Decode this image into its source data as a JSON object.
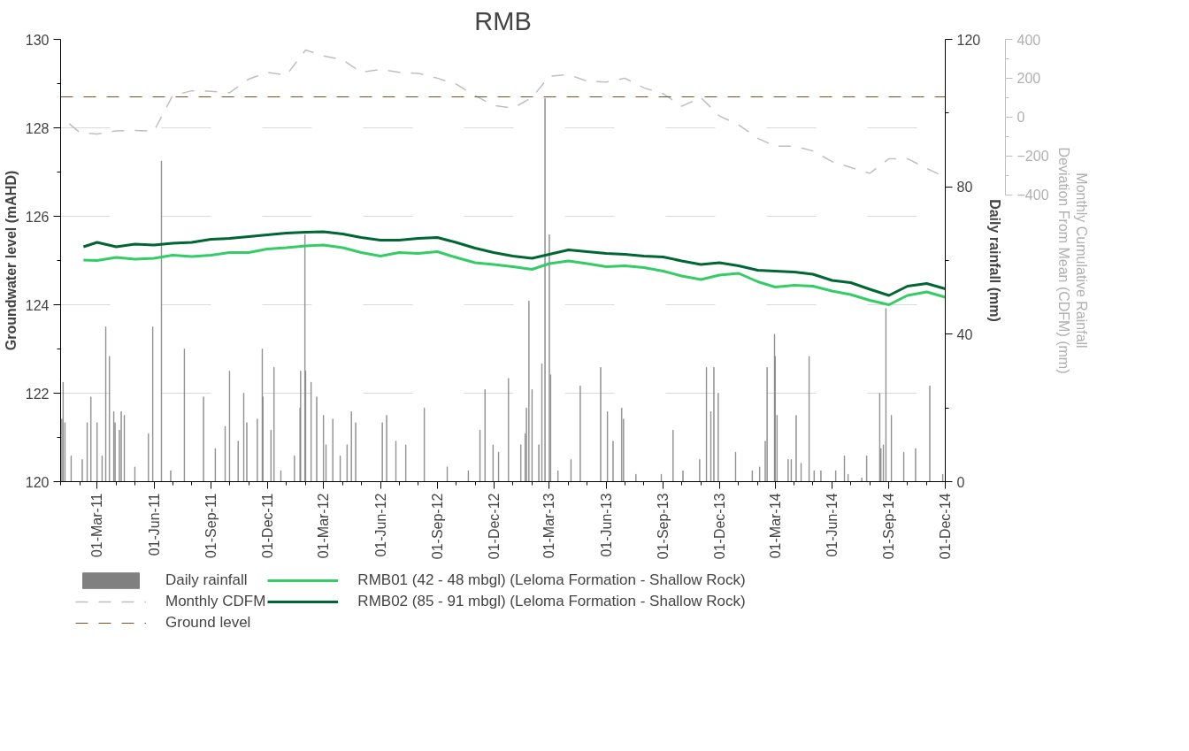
{
  "chart_data": {
    "type": "line",
    "title": "RMB",
    "ylabel": "Groundwater level (mAHD)",
    "y2label": "Daily rainfall (mm)",
    "y3label": "Monthly Cumulative Rainfall\nDeviation From Mean (CDFM) (mm)",
    "xlim": [
      "2011-01-01",
      "2014-12-01"
    ],
    "xticks": [
      {
        "value": "2011-03-01",
        "label": "01-Mar-11"
      },
      {
        "value": "2011-06-01",
        "label": "01-Jun-11"
      },
      {
        "value": "2011-09-01",
        "label": "01-Sep-11"
      },
      {
        "value": "2011-12-01",
        "label": "01-Dec-11"
      },
      {
        "value": "2012-03-01",
        "label": "01-Mar-12"
      },
      {
        "value": "2012-06-01",
        "label": "01-Jun-12"
      },
      {
        "value": "2012-09-01",
        "label": "01-Sep-12"
      },
      {
        "value": "2012-12-01",
        "label": "01-Dec-12"
      },
      {
        "value": "2013-03-01",
        "label": "01-Mar-13"
      },
      {
        "value": "2013-06-01",
        "label": "01-Jun-13"
      },
      {
        "value": "2013-09-01",
        "label": "01-Sep-13"
      },
      {
        "value": "2013-12-01",
        "label": "01-Dec-13"
      },
      {
        "value": "2014-03-01",
        "label": "01-Mar-14"
      },
      {
        "value": "2014-06-01",
        "label": "01-Jun-14"
      },
      {
        "value": "2014-09-01",
        "label": "01-Sep-14"
      },
      {
        "value": "2014-12-01",
        "label": "01-Dec-14"
      }
    ],
    "ylim": [
      120,
      130
    ],
    "yticks": [
      120,
      122,
      124,
      126,
      128,
      130
    ],
    "y2lim": [
      0,
      120
    ],
    "y2ticks": [
      0,
      40,
      80,
      120
    ],
    "y3lim": [
      -400,
      400
    ],
    "y3ticks": [
      -400,
      -200,
      0,
      200,
      400
    ],
    "grid": "y",
    "legend": "bottom",
    "ref_lines": [
      {
        "axis": "y",
        "value": 128.7,
        "label": "Ground level",
        "color": "#7f4f1f",
        "line_style": "dashed"
      }
    ],
    "series": [
      {
        "name": "Daily rainfall",
        "type": "bar",
        "axis": "y2",
        "color": "#808080",
        "x": [
          "2011-01-03",
          "2011-01-05",
          "2011-01-08",
          "2011-01-18",
          "2011-02-05",
          "2011-02-13",
          "2011-02-19",
          "2011-03-01",
          "2011-03-09",
          "2011-03-15",
          "2011-03-21",
          "2011-03-28",
          "2011-03-30",
          "2011-04-06",
          "2011-04-09",
          "2011-04-14",
          "2011-05-01",
          "2011-05-23",
          "2011-05-30",
          "2011-06-12",
          "2011-06-13",
          "2011-06-28",
          "2011-07-20",
          "2011-08-20",
          "2011-09-08",
          "2011-09-24",
          "2011-10-01",
          "2011-10-15",
          "2011-10-24",
          "2011-10-29",
          "2011-11-15",
          "2011-11-23",
          "2011-11-24",
          "2011-12-07",
          "2011-12-12",
          "2011-12-23",
          "2012-01-14",
          "2012-01-23",
          "2012-01-24",
          "2012-01-31",
          "2012-02-01",
          "2012-02-10",
          "2012-02-19",
          "2012-03-01",
          "2012-03-05",
          "2012-03-16",
          "2012-03-28",
          "2012-04-08",
          "2012-04-15",
          "2012-04-22",
          "2012-06-04",
          "2012-06-11",
          "2012-06-26",
          "2012-07-12",
          "2012-08-11",
          "2012-09-17",
          "2012-10-21",
          "2012-11-09",
          "2012-11-17",
          "2012-11-30",
          "2012-12-09",
          "2012-12-25",
          "2013-01-14",
          "2013-01-21",
          "2013-01-23",
          "2013-01-27",
          "2013-02-01",
          "2013-02-12",
          "2013-02-17",
          "2013-02-22",
          "2013-03-01",
          "2013-03-03",
          "2013-03-15",
          "2013-04-05",
          "2013-04-20",
          "2013-05-23",
          "2013-06-03",
          "2013-06-12",
          "2013-06-26",
          "2013-06-29",
          "2013-07-19",
          "2013-08-29",
          "2013-09-17",
          "2013-10-03",
          "2013-10-30",
          "2013-11-10",
          "2013-11-17",
          "2013-11-22",
          "2013-11-29",
          "2013-12-27",
          "2014-01-23",
          "2014-02-04",
          "2014-02-13",
          "2014-02-16",
          "2014-02-28",
          "2014-03-01",
          "2014-03-04",
          "2014-03-22",
          "2014-03-27",
          "2014-04-04",
          "2014-04-12",
          "2014-04-25",
          "2014-05-03",
          "2014-05-14",
          "2014-06-07",
          "2014-06-21",
          "2014-06-27",
          "2014-07-19",
          "2014-07-27",
          "2014-08-17",
          "2014-08-19",
          "2014-08-23",
          "2014-08-27",
          "2014-09-05",
          "2014-09-25",
          "2014-10-14",
          "2014-11-06",
          "2014-11-27"
        ],
        "values": [
          17,
          27,
          16,
          7,
          6,
          16,
          23,
          16,
          7,
          42,
          34,
          19,
          16,
          14,
          19,
          18,
          4,
          13,
          42,
          null,
          87,
          3,
          36,
          23,
          9,
          15,
          30,
          11,
          24,
          16,
          17,
          36,
          23,
          14,
          31,
          3,
          7,
          20,
          30,
          67,
          30,
          27,
          23,
          18,
          10,
          17,
          7,
          10,
          19,
          16,
          16,
          18,
          11,
          10,
          20,
          4,
          3,
          14,
          25,
          10,
          8,
          28,
          10,
          13,
          20,
          49,
          25,
          10,
          32,
          104,
          67,
          29,
          3,
          6,
          26,
          31,
          19,
          11,
          20,
          17,
          2,
          2,
          14,
          3,
          6,
          31,
          19,
          31,
          24,
          8,
          3,
          4,
          11,
          31,
          40,
          34,
          18,
          6,
          6,
          18,
          5,
          34,
          3,
          3,
          3,
          7,
          2,
          1,
          7,
          24,
          9,
          10,
          47,
          18,
          8,
          9,
          26,
          2
        ]
      },
      {
        "name": "Monthly CDFM",
        "type": "line",
        "axis": "y3",
        "color": "#bfbfbf",
        "line_style": "dashed",
        "x": [
          "2011-01-15",
          "2011-02-01",
          "2011-03-01",
          "2011-04-01",
          "2011-05-01",
          "2011-06-01",
          "2011-07-01",
          "2011-08-01",
          "2011-09-01",
          "2011-10-01",
          "2011-11-01",
          "2011-12-01",
          "2012-01-01",
          "2012-02-01",
          "2012-03-01",
          "2012-04-01",
          "2012-05-01",
          "2012-06-01",
          "2012-07-01",
          "2012-08-01",
          "2012-09-01",
          "2012-10-01",
          "2012-11-01",
          "2012-12-01",
          "2013-01-01",
          "2013-02-01",
          "2013-03-01",
          "2013-04-01",
          "2013-05-01",
          "2013-06-01",
          "2013-07-01",
          "2013-08-01",
          "2013-09-01",
          "2013-10-01",
          "2013-11-01",
          "2013-12-01",
          "2014-01-01",
          "2014-02-01",
          "2014-03-01",
          "2014-04-01",
          "2014-05-01",
          "2014-06-01",
          "2014-07-01",
          "2014-08-01",
          "2014-09-01",
          "2014-10-01",
          "2014-11-01",
          "2014-12-01"
        ],
        "values": [
          -35,
          -80,
          -88,
          -72,
          -70,
          -72,
          110,
          135,
          132,
          125,
          195,
          230,
          215,
          345,
          315,
          295,
          230,
          245,
          230,
          225,
          200,
          170,
          110,
          60,
          45,
          100,
          210,
          218,
          185,
          180,
          200,
          150,
          120,
          55,
          100,
          5,
          -40,
          -110,
          -150,
          -150,
          -175,
          -230,
          -260,
          -290,
          -215,
          -215,
          -265,
          -310
        ]
      },
      {
        "name": "RMB01 (42 - 48 mbgl) (Leloma Formation - Shallow Rock)",
        "color": "#33cc66",
        "x": [
          "2011-02-07",
          "2011-03-01",
          "2011-04-01",
          "2011-05-01",
          "2011-06-01",
          "2011-07-01",
          "2011-08-01",
          "2011-09-01",
          "2011-10-01",
          "2011-11-01",
          "2011-12-01",
          "2012-01-01",
          "2012-02-01",
          "2012-03-01",
          "2012-04-01",
          "2012-05-01",
          "2012-06-01",
          "2012-07-01",
          "2012-08-01",
          "2012-09-01",
          "2012-10-01",
          "2012-11-01",
          "2012-12-01",
          "2013-01-01",
          "2013-02-01",
          "2013-03-01",
          "2013-04-01",
          "2013-05-01",
          "2013-06-01",
          "2013-07-01",
          "2013-08-01",
          "2013-09-01",
          "2013-10-01",
          "2013-11-01",
          "2013-12-01",
          "2014-01-01",
          "2014-02-01",
          "2014-03-01",
          "2014-04-01",
          "2014-05-01",
          "2014-06-01",
          "2014-07-01",
          "2014-08-01",
          "2014-09-01",
          "2014-10-01",
          "2014-11-01",
          "2014-12-01"
        ],
        "values": [
          125.01,
          125.0,
          125.07,
          125.03,
          125.05,
          125.12,
          125.09,
          125.12,
          125.18,
          125.18,
          125.26,
          125.29,
          125.33,
          125.35,
          125.29,
          125.18,
          125.1,
          125.18,
          125.16,
          125.2,
          125.07,
          124.95,
          124.91,
          124.86,
          124.8,
          124.93,
          124.99,
          124.93,
          124.86,
          124.88,
          124.84,
          124.76,
          124.65,
          124.57,
          124.67,
          124.71,
          124.52,
          124.4,
          124.44,
          124.42,
          124.31,
          124.23,
          124.1,
          124.0,
          124.21,
          124.29,
          124.17
        ]
      },
      {
        "name": "RMB02 (85 - 91 mbgl) (Leloma Formation - Shallow Rock)",
        "color": "#006633",
        "x": [
          "2011-02-07",
          "2011-03-01",
          "2011-04-01",
          "2011-05-01",
          "2011-06-01",
          "2011-07-01",
          "2011-08-01",
          "2011-09-01",
          "2011-10-01",
          "2011-11-01",
          "2011-12-01",
          "2012-01-01",
          "2012-02-01",
          "2012-03-01",
          "2012-04-01",
          "2012-05-01",
          "2012-06-01",
          "2012-07-01",
          "2012-08-01",
          "2012-09-01",
          "2012-10-01",
          "2012-11-01",
          "2012-12-01",
          "2013-01-01",
          "2013-02-01",
          "2013-03-01",
          "2013-04-01",
          "2013-05-01",
          "2013-06-01",
          "2013-07-01",
          "2013-08-01",
          "2013-09-01",
          "2013-10-01",
          "2013-11-01",
          "2013-12-01",
          "2014-01-01",
          "2014-02-01",
          "2014-03-01",
          "2014-04-01",
          "2014-05-01",
          "2014-06-01",
          "2014-07-01",
          "2014-08-01",
          "2014-09-01",
          "2014-10-01",
          "2014-11-01",
          "2014-12-01"
        ],
        "values": [
          125.31,
          125.41,
          125.31,
          125.37,
          125.35,
          125.39,
          125.41,
          125.48,
          125.5,
          125.54,
          125.58,
          125.62,
          125.64,
          125.65,
          125.6,
          125.52,
          125.46,
          125.46,
          125.5,
          125.52,
          125.41,
          125.28,
          125.18,
          125.1,
          125.05,
          125.14,
          125.24,
          125.2,
          125.16,
          125.14,
          125.1,
          125.08,
          124.99,
          124.91,
          124.95,
          124.88,
          124.78,
          124.76,
          124.74,
          124.69,
          124.55,
          124.5,
          124.35,
          124.21,
          124.42,
          124.48,
          124.36
        ]
      }
    ]
  }
}
